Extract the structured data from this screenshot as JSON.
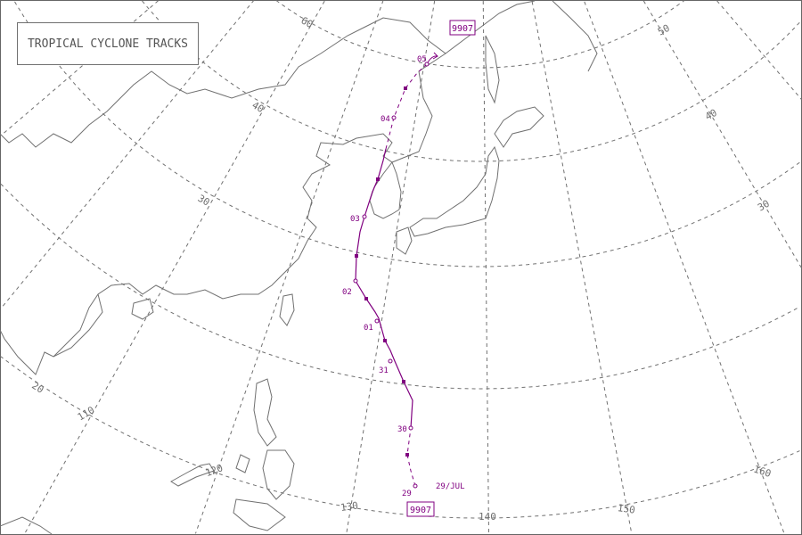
{
  "title": "TROPICAL CYCLONE TRACKS",
  "map": {
    "latitude_labels": [
      "10",
      "20",
      "30",
      "40",
      "50",
      "60"
    ],
    "longitude_labels": [
      "110",
      "120",
      "130",
      "140",
      "150",
      "160"
    ],
    "grid_style": "dashed",
    "coastline_color": "#707070",
    "grid_color": "#707070"
  },
  "track": {
    "id": "9907",
    "color": "#800080",
    "start_label": "29/JUL",
    "day_labels": [
      "29",
      "30",
      "31",
      "01",
      "02",
      "03",
      "04",
      "05"
    ]
  }
}
